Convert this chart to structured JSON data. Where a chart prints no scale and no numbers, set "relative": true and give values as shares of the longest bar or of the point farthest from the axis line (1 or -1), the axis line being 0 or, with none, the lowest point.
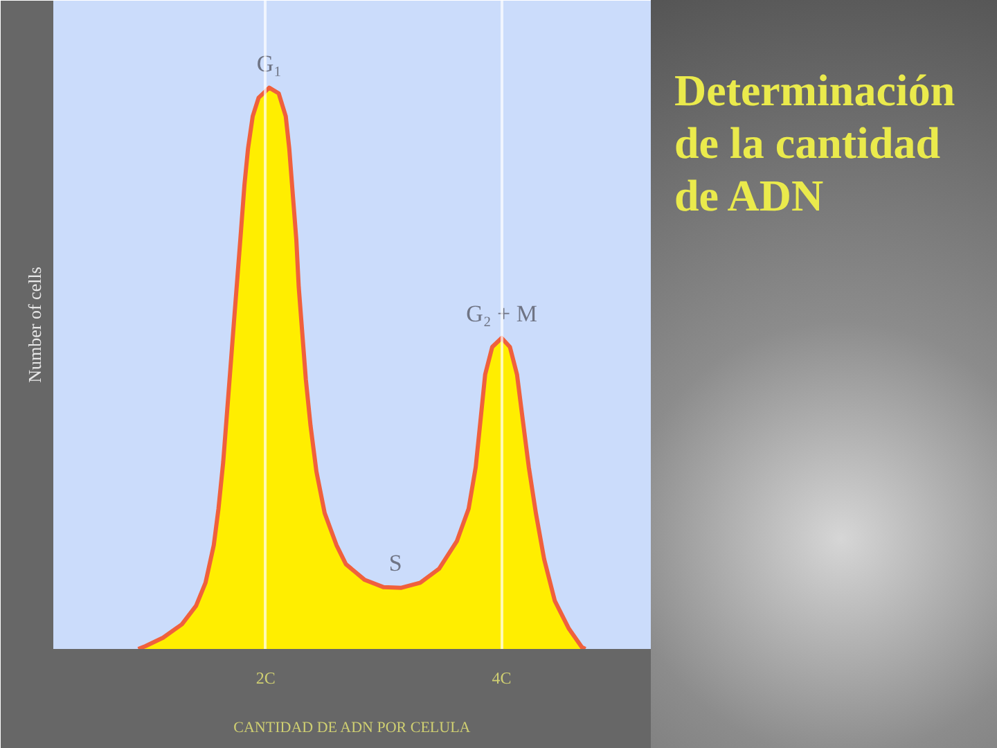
{
  "chart_data": {
    "type": "area",
    "title": "Determinación de la cantidad de ADN",
    "xlabel": "CANTIDAD DE ADN POR CELULA",
    "ylabel": "Number of cells",
    "relative": true,
    "x": [
      0.92,
      0.98,
      1.13,
      1.29,
      1.41,
      1.49,
      1.56,
      1.6,
      1.64,
      1.67,
      1.7,
      1.73,
      1.76,
      1.79,
      1.82,
      1.85,
      1.89,
      1.94,
      2.03,
      2.11,
      2.17,
      2.2,
      2.23,
      2.26,
      2.28,
      2.31,
      2.34,
      2.38,
      2.43,
      2.5,
      2.6,
      2.68,
      2.84,
      3.0,
      3.15,
      3.31,
      3.47,
      3.62,
      3.72,
      3.78,
      3.82,
      3.86,
      3.92,
      4.0,
      4.07,
      4.13,
      4.18,
      4.23,
      4.29,
      4.36,
      4.45,
      4.57,
      4.68,
      4.71
    ],
    "series": [
      {
        "color": "#ffee00",
        "values": [
          0.0,
          0.005,
          0.02,
          0.044,
          0.077,
          0.118,
          0.185,
          0.25,
          0.333,
          0.415,
          0.497,
          0.58,
          0.661,
          0.743,
          0.827,
          0.891,
          0.949,
          0.982,
          1.0,
          0.99,
          0.949,
          0.891,
          0.809,
          0.728,
          0.645,
          0.563,
          0.481,
          0.398,
          0.316,
          0.242,
          0.185,
          0.151,
          0.123,
          0.11,
          0.109,
          0.118,
          0.143,
          0.192,
          0.25,
          0.324,
          0.406,
          0.489,
          0.538,
          0.554,
          0.538,
          0.489,
          0.406,
          0.324,
          0.242,
          0.16,
          0.086,
          0.036,
          0.003,
          0.0
        ]
      }
    ],
    "xlim": [
      0.2,
      5.27
    ],
    "xticks": [
      {
        "value": 2,
        "label": "2C"
      },
      {
        "value": 4,
        "label": "4C"
      }
    ],
    "grid": "x",
    "annotations": [
      {
        "text": "G₁",
        "x": 2.03,
        "y": 1.0
      },
      {
        "text": "G₂ + M",
        "x": 4.0,
        "y": 0.554
      },
      {
        "text": "S",
        "x": 3.1,
        "y": 0.11
      }
    ]
  }
}
